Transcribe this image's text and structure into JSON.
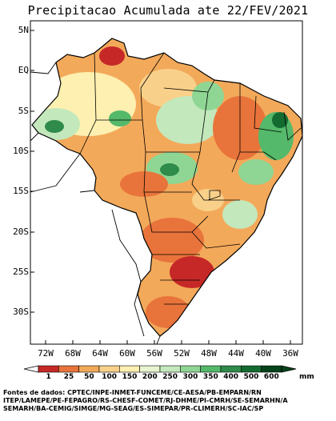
{
  "title": "Precipitacao Acumulada ate 22/FEV/2021",
  "lat_ticks": [
    "5N",
    "EQ",
    "5S",
    "10S",
    "15S",
    "20S",
    "25S",
    "30S"
  ],
  "lon_ticks": [
    "72W",
    "68W",
    "64W",
    "60W",
    "56W",
    "52W",
    "48W",
    "44W",
    "40W",
    "36W"
  ],
  "legend": {
    "labels": [
      "1",
      "25",
      "50",
      "100",
      "150",
      "200",
      "250",
      "300",
      "350",
      "400",
      "500",
      "600"
    ],
    "colors": [
      "#c62828",
      "#e8743b",
      "#f3a95a",
      "#f9d089",
      "#fdf0b0",
      "#e7f4cf",
      "#c3e8bc",
      "#8fd694",
      "#54b96a",
      "#2e8b4a",
      "#136b30",
      "#05431a"
    ],
    "unit": "mm"
  },
  "credits": [
    "Fontes de dados: CPTEC/INPE-INMET-FUNCEME/CE-AESA/PB-EMPARN/RN",
    "ITEP/LAMEPE/PE-FEPAGRO/RS-CHESF-COMET/RJ-DHME/PI-CMRH/SE-SEMARHN/A",
    "SEMARH/BA-CEMIG/SIMGE/MG-SEAG/ES-SIMEPAR/PR-CLIMERH/SC-IAC/SP"
  ]
}
